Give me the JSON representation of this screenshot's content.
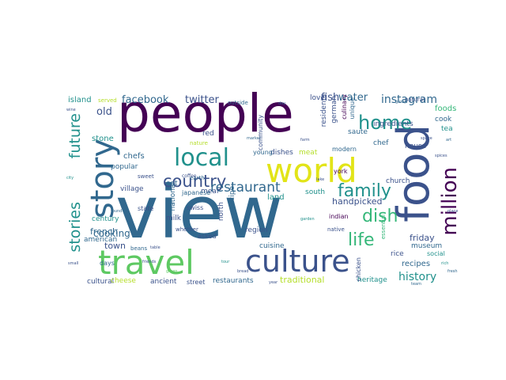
{
  "palette": {
    "purple": "#440154",
    "dark_blue": "#3b528b",
    "blue": "#31688e",
    "teal": "#21918c",
    "green": "#35b779",
    "light_green": "#5ec962",
    "yellow": "#e2e418",
    "lime": "#b5de2b"
  },
  "words": {
    "people": "people",
    "view": "view",
    "food": "food",
    "world": "world",
    "travel": "travel",
    "culture": "culture",
    "story": "story",
    "local": "local",
    "country": "country",
    "restaurant": "restaurant",
    "family": "family",
    "home": "home",
    "dish": "dish",
    "life": "life",
    "million": "million",
    "future": "future",
    "stories": "stories",
    "history": "history",
    "facebook": "facebook",
    "twitter": "twitter",
    "instagram": "instagram",
    "island": "island",
    "served": "served",
    "fish": "fish",
    "water": "water",
    "love": "love",
    "old": "old",
    "town": "town",
    "french": "french",
    "cooking": "cooking",
    "popular": "popular",
    "village": "village",
    "chefs": "chefs",
    "stone": "stone",
    "century": "century",
    "american": "american",
    "cultural": "cultural",
    "cheese": "cheese",
    "ancient": "ancient",
    "street": "street",
    "restaurants": "restaurants",
    "traditional": "traditional",
    "heritage": "heritage",
    "recipes": "recipes",
    "friday": "friday",
    "rice": "rice",
    "museum": "museum",
    "social": "social",
    "foods": "foods",
    "cook": "cook",
    "tea": "tea",
    "ingredients": "ingredients",
    "saute": "saute",
    "chef": "chef",
    "house": "house",
    "modern": "modern",
    "church": "church",
    "york": "york",
    "indian": "indian",
    "south": "south",
    "handpicked": "handpicked",
    "meat": "meat",
    "dishes": "dishes",
    "young": "young",
    "land": "land",
    "region": "region",
    "cuisine": "cuisine",
    "swiss": "swiss",
    "meal": "meal",
    "eat": "eat",
    "japanese": "japanese",
    "state": "state",
    "milk": "milk",
    "national": "national",
    "recipe": "recipe",
    "north": "north",
    "asked": "asked",
    "residents": "residents",
    "german": "german",
    "culinary": "culinary",
    "unique": "unique",
    "natural": "natural",
    "community": "community",
    "nature": "nature",
    "red": "red",
    "outside": "outside",
    "earth": "earth",
    "beans": "beans",
    "days": "days",
    "whether": "whether",
    "coffee": "coffee",
    "chicken": "chicken",
    "native": "native",
    "essential": "essential",
    "sweet": "sweet",
    "wine": "wine",
    "city": "city",
    "small": "small",
    "found": "found",
    "table": "table",
    "green": "green",
    "bread": "bread",
    "market": "market",
    "farm": "farm",
    "garden": "garden",
    "lake": "lake",
    "group": "group",
    "space": "space",
    "art": "art",
    "place": "place",
    "rich": "rich",
    "fresh": "fresh",
    "local2": "spices",
    "day": "day",
    "year": "year",
    "team": "team",
    "friends": "friends",
    "tour": "tour"
  }
}
